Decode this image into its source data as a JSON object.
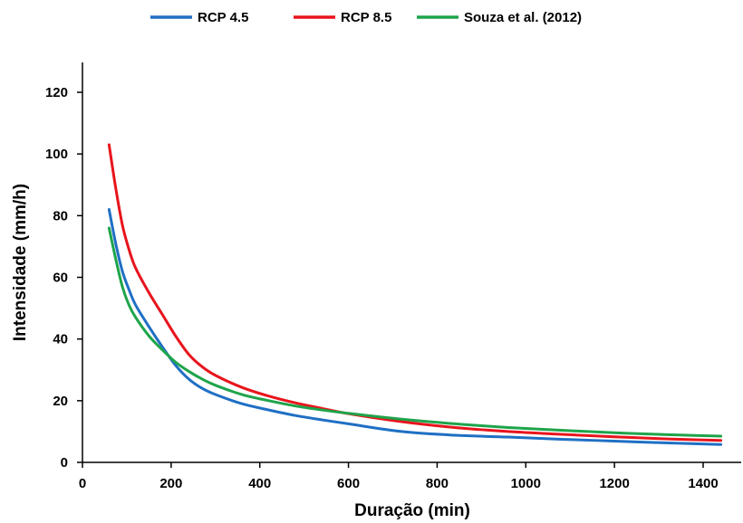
{
  "chart_data": {
    "type": "line",
    "xlabel": "Duração (min)",
    "ylabel": "Intensidade (mm/h)",
    "xlim": [
      0,
      1440
    ],
    "ylim": [
      0,
      120
    ],
    "xticks": [
      0,
      200,
      400,
      600,
      800,
      1000,
      1200,
      1400
    ],
    "yticks": [
      0,
      20,
      40,
      60,
      80,
      100,
      120
    ],
    "grid": false,
    "legend_position": "top",
    "series": [
      {
        "name": "RCP 4.5",
        "color": "#1f6fc4",
        "x": [
          60,
          75,
          90,
          105,
          120,
          150,
          180,
          210,
          240,
          270,
          300,
          360,
          420,
          480,
          540,
          600,
          720,
          840,
          960,
          1080,
          1200,
          1320,
          1440
        ],
        "y": [
          82,
          71,
          62,
          56,
          51,
          44,
          37.5,
          31.5,
          27,
          24,
          22,
          19,
          17,
          15.2,
          13.8,
          12.5,
          10,
          8.8,
          8.2,
          7.5,
          6.9,
          6.3,
          5.8
        ]
      },
      {
        "name": "RCP 8.5",
        "color": "#e8141c",
        "x": [
          60,
          75,
          90,
          105,
          120,
          150,
          180,
          210,
          240,
          270,
          300,
          360,
          420,
          480,
          540,
          600,
          720,
          840,
          960,
          1080,
          1200,
          1320,
          1440
        ],
        "y": [
          103,
          89,
          77,
          69,
          63,
          55,
          48,
          41,
          35,
          31,
          28.2,
          24.3,
          21.5,
          19.3,
          17.5,
          15.8,
          13.2,
          11.3,
          10,
          9.1,
          8.3,
          7.6,
          7.1
        ]
      },
      {
        "name": "Souza et al. (2012)",
        "color": "#1ea44a",
        "x": [
          60,
          75,
          90,
          105,
          120,
          150,
          180,
          210,
          240,
          270,
          300,
          360,
          420,
          480,
          540,
          600,
          720,
          840,
          960,
          1080,
          1200,
          1320,
          1440
        ],
        "y": [
          76,
          66,
          57,
          51,
          47,
          41,
          36.5,
          32.5,
          29.5,
          27,
          25,
          22,
          20,
          18.3,
          17,
          15.9,
          14,
          12.5,
          11.3,
          10.4,
          9.6,
          9,
          8.5
        ]
      }
    ]
  }
}
